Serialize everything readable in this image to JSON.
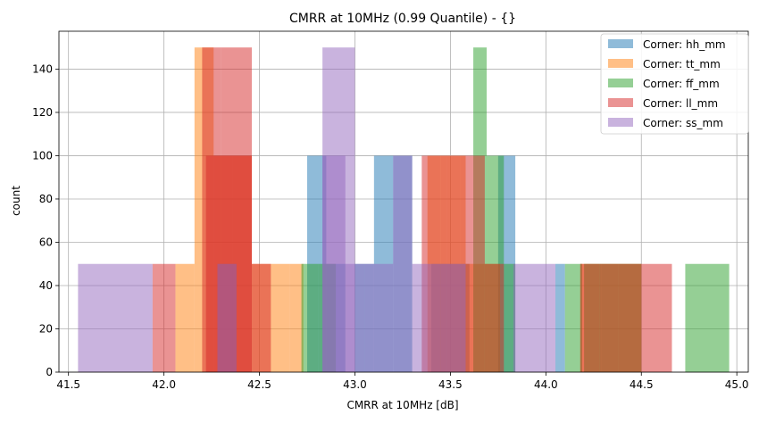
{
  "chart_data": {
    "type": "histogram",
    "title": "CMRR at 10MHz (0.99 Quantile) - {}",
    "xlabel": "CMRR at 10MHz [dB]",
    "ylabel": "count",
    "xlim": [
      41.45,
      45.06
    ],
    "ylim": [
      0,
      157.5
    ],
    "xticks": [
      "41.5",
      "42.0",
      "42.5",
      "43.0",
      "43.5",
      "44.0",
      "44.5",
      "45.0"
    ],
    "yticks": [
      "0",
      "20",
      "40",
      "60",
      "80",
      "100",
      "120",
      "140"
    ],
    "xtick_values": [
      41.5,
      42.0,
      42.5,
      43.0,
      43.5,
      44.0,
      44.5,
      45.0
    ],
    "ytick_values": [
      0,
      20,
      40,
      60,
      80,
      100,
      120,
      140
    ],
    "grid": true,
    "legend_position": "top-right",
    "alpha": 0.5,
    "series": [
      {
        "name": "Corner: hh_mm",
        "color": "#1f77b4",
        "bins": [
          [
            42.28,
            42.38,
            50
          ],
          [
            42.75,
            42.85,
            100
          ],
          [
            42.85,
            42.95,
            50
          ],
          [
            43.0,
            43.1,
            50
          ],
          [
            43.1,
            43.2,
            100
          ],
          [
            43.2,
            43.3,
            100
          ],
          [
            43.4,
            43.5,
            50
          ],
          [
            43.5,
            43.6,
            50
          ],
          [
            43.75,
            43.84,
            100
          ],
          [
            44.05,
            44.1,
            50
          ]
        ]
      },
      {
        "name": "Corner: tt_mm",
        "color": "#ff7f0e",
        "bins": [
          [
            42.06,
            42.16,
            50
          ],
          [
            42.16,
            42.26,
            150
          ],
          [
            42.26,
            42.36,
            100
          ],
          [
            42.36,
            42.46,
            100
          ],
          [
            42.46,
            42.56,
            50
          ],
          [
            42.56,
            42.66,
            50
          ],
          [
            42.66,
            42.73,
            50
          ],
          [
            43.38,
            43.48,
            100
          ],
          [
            43.48,
            43.58,
            100
          ],
          [
            43.58,
            43.68,
            50
          ],
          [
            43.68,
            43.76,
            50
          ],
          [
            44.18,
            44.28,
            50
          ],
          [
            44.28,
            44.38,
            50
          ],
          [
            44.38,
            44.5,
            50
          ]
        ]
      },
      {
        "name": "Corner: ff_mm",
        "color": "#2ca02c",
        "bins": [
          [
            42.72,
            42.81,
            50
          ],
          [
            42.81,
            42.9,
            50
          ],
          [
            43.62,
            43.69,
            150
          ],
          [
            43.69,
            43.78,
            100
          ],
          [
            43.78,
            43.84,
            50
          ],
          [
            44.1,
            44.19,
            50
          ],
          [
            44.2,
            44.29,
            50
          ],
          [
            44.29,
            44.38,
            50
          ],
          [
            44.38,
            44.5,
            50
          ],
          [
            44.73,
            44.96,
            50
          ]
        ]
      },
      {
        "name": "Corner: ll_mm",
        "color": "#d62728",
        "bins": [
          [
            41.94,
            42.06,
            50
          ],
          [
            42.2,
            42.3,
            150
          ],
          [
            42.3,
            42.46,
            150
          ],
          [
            42.22,
            42.46,
            100
          ],
          [
            42.46,
            42.56,
            50
          ],
          [
            43.35,
            43.45,
            100
          ],
          [
            43.45,
            43.55,
            100
          ],
          [
            43.55,
            43.68,
            100
          ],
          [
            43.68,
            43.78,
            50
          ],
          [
            44.18,
            44.28,
            50
          ],
          [
            44.28,
            44.38,
            50
          ],
          [
            44.38,
            44.5,
            50
          ],
          [
            44.5,
            44.66,
            50
          ]
        ]
      },
      {
        "name": "Corner: ss_mm",
        "color": "#9467bd",
        "bins": [
          [
            41.55,
            41.94,
            50
          ],
          [
            42.28,
            42.38,
            50
          ],
          [
            42.83,
            42.95,
            100
          ],
          [
            42.83,
            43.0,
            150
          ],
          [
            42.95,
            43.05,
            50
          ],
          [
            43.05,
            43.2,
            50
          ],
          [
            43.2,
            43.3,
            100
          ],
          [
            43.3,
            43.45,
            50
          ],
          [
            43.45,
            43.58,
            50
          ],
          [
            43.83,
            44.05,
            50
          ]
        ]
      }
    ]
  }
}
